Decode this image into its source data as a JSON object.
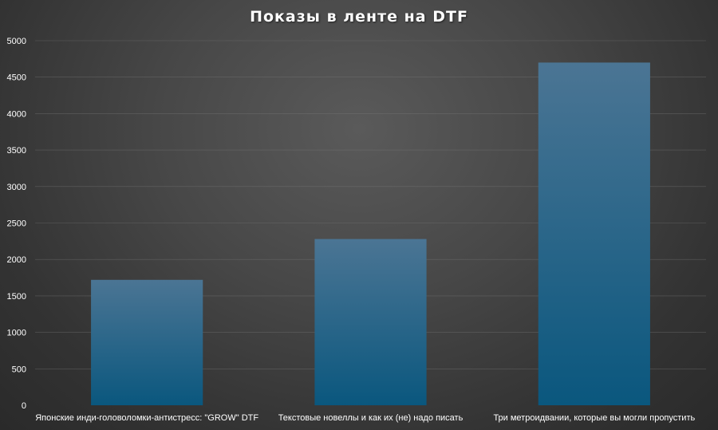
{
  "chart_data": {
    "type": "bar",
    "title": "Показы в ленте на DTF",
    "categories": [
      "Японские инди-головоломки-антистресс: \"GROW\" DTF",
      "Текстовые новеллы и как их (не) надо писать",
      "Три метроидвании, которые вы могли пропустить"
    ],
    "values": [
      1720,
      2280,
      4700
    ],
    "ylim": [
      0,
      5000
    ],
    "yticks": [
      0,
      500,
      1000,
      1500,
      2000,
      2500,
      3000,
      3500,
      4000,
      4500,
      5000
    ],
    "grid": true,
    "legend": "none"
  },
  "colors": {
    "bar_top": "#4b7594",
    "bar_bottom": "#0a577e",
    "text": "#ffffff"
  }
}
